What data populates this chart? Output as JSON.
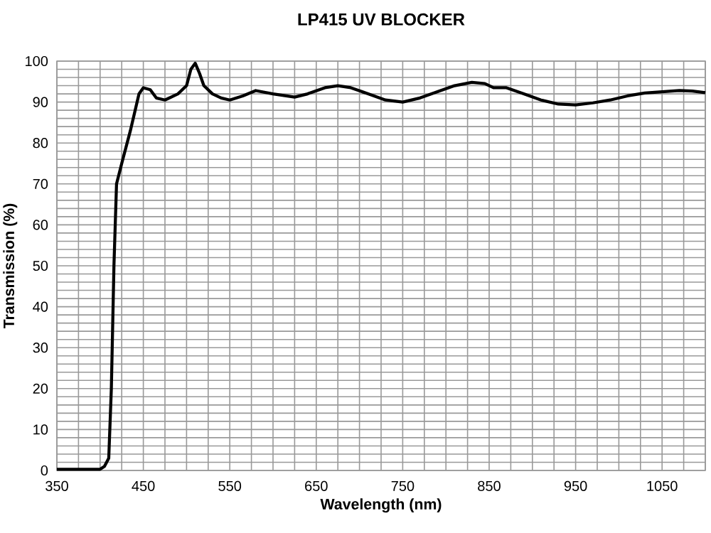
{
  "chart_data": {
    "type": "line",
    "title": "LP415 UV BLOCKER",
    "xlabel": "Wavelength (nm)",
    "ylabel": "Transmission (%)",
    "color": "#000000",
    "line_style": "solid",
    "grid": true,
    "xlim": [
      350,
      1100
    ],
    "ylim": [
      0,
      100
    ],
    "xticks": [
      350,
      {
        "value": 375,
        "label": null
      },
      {
        "value": 400,
        "label": null
      },
      {
        "value": 425,
        "label": null
      },
      450,
      {
        "value": 475,
        "label": null
      },
      {
        "value": 500,
        "label": null
      },
      {
        "value": 525,
        "label": null
      },
      550,
      {
        "value": 575,
        "label": null
      },
      {
        "value": 600,
        "label": null
      },
      {
        "value": 625,
        "label": null
      },
      650,
      {
        "value": 675,
        "label": null
      },
      {
        "value": 700,
        "label": null
      },
      {
        "value": 725,
        "label": null
      },
      750,
      {
        "value": 775,
        "label": null
      },
      {
        "value": 800,
        "label": null
      },
      {
        "value": 825,
        "label": null
      },
      850,
      {
        "value": 875,
        "label": null
      },
      {
        "value": 900,
        "label": null
      },
      {
        "value": 925,
        "label": null
      },
      950,
      {
        "value": 975,
        "label": null
      },
      {
        "value": 1000,
        "label": null
      },
      {
        "value": 1025,
        "label": null
      },
      1050,
      {
        "value": 1075,
        "label": null
      },
      {
        "value": 1100,
        "label": null
      }
    ],
    "yticks": [
      0,
      {
        "value": 2,
        "label": null
      },
      {
        "value": 4,
        "label": null
      },
      {
        "value": 6,
        "label": null
      },
      {
        "value": 8,
        "label": null
      },
      10,
      {
        "value": 12,
        "label": null
      },
      {
        "value": 14,
        "label": null
      },
      {
        "value": 16,
        "label": null
      },
      {
        "value": 18,
        "label": null
      },
      20,
      {
        "value": 22,
        "label": null
      },
      {
        "value": 24,
        "label": null
      },
      {
        "value": 26,
        "label": null
      },
      {
        "value": 28,
        "label": null
      },
      30,
      {
        "value": 32,
        "label": null
      },
      {
        "value": 34,
        "label": null
      },
      {
        "value": 36,
        "label": null
      },
      {
        "value": 38,
        "label": null
      },
      40,
      {
        "value": 42,
        "label": null
      },
      {
        "value": 44,
        "label": null
      },
      {
        "value": 46,
        "label": null
      },
      {
        "value": 48,
        "label": null
      },
      50,
      {
        "value": 52,
        "label": null
      },
      {
        "value": 54,
        "label": null
      },
      {
        "value": 56,
        "label": null
      },
      {
        "value": 58,
        "label": null
      },
      60,
      {
        "value": 62,
        "label": null
      },
      {
        "value": 64,
        "label": null
      },
      {
        "value": 66,
        "label": null
      },
      {
        "value": 68,
        "label": null
      },
      70,
      {
        "value": 72,
        "label": null
      },
      {
        "value": 74,
        "label": null
      },
      {
        "value": 76,
        "label": null
      },
      {
        "value": 78,
        "label": null
      },
      80,
      {
        "value": 82,
        "label": null
      },
      {
        "value": 84,
        "label": null
      },
      {
        "value": 86,
        "label": null
      },
      {
        "value": 88,
        "label": null
      },
      90,
      {
        "value": 92,
        "label": null
      },
      {
        "value": 94,
        "label": null
      },
      {
        "value": 96,
        "label": null
      },
      {
        "value": 98,
        "label": null
      },
      100
    ],
    "x": [
      350,
      400,
      405,
      410,
      413,
      416,
      419,
      425,
      435,
      445,
      450,
      458,
      465,
      475,
      490,
      500,
      505,
      510,
      515,
      520,
      530,
      540,
      550,
      565,
      580,
      600,
      625,
      640,
      660,
      675,
      690,
      710,
      730,
      750,
      770,
      790,
      810,
      830,
      845,
      855,
      870,
      890,
      910,
      930,
      950,
      970,
      990,
      1010,
      1030,
      1050,
      1070,
      1085,
      1100
    ],
    "values": [
      0.3,
      0.3,
      1,
      3,
      20,
      50,
      70,
      75,
      83,
      92,
      93.5,
      93,
      91,
      90.5,
      92,
      94,
      98,
      99.5,
      97,
      94,
      92,
      91,
      90.5,
      91.5,
      92.8,
      92,
      91.2,
      92,
      93.5,
      94,
      93.5,
      92,
      90.5,
      90,
      91,
      92.5,
      94,
      94.8,
      94.5,
      93.5,
      93.5,
      92,
      90.5,
      89.5,
      89.3,
      89.8,
      90.5,
      91.5,
      92.2,
      92.5,
      92.8,
      92.7,
      92.3
    ]
  }
}
